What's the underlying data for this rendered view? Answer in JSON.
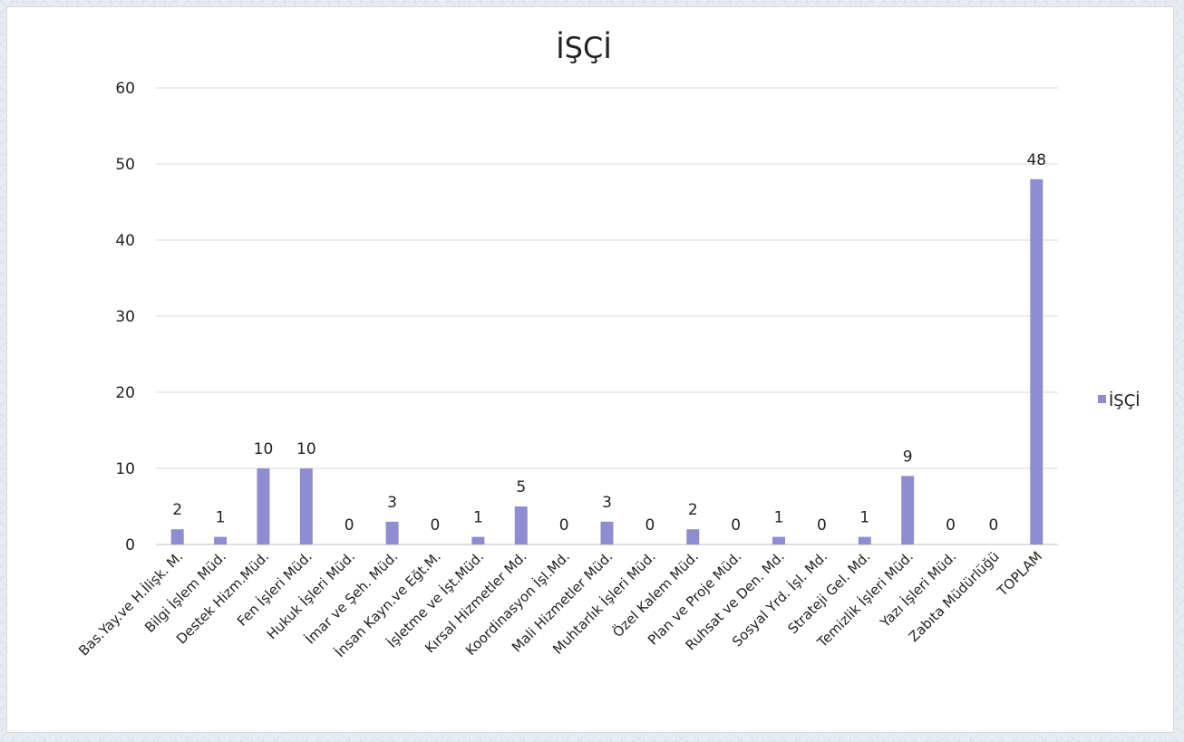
{
  "chart_data": {
    "type": "bar",
    "title": "İŞÇİ",
    "xlabel": "",
    "ylabel": "",
    "ylim": [
      0,
      60
    ],
    "yticks": [
      0,
      10,
      20,
      30,
      40,
      50,
      60
    ],
    "grid": true,
    "legend_position": "right",
    "bar_color": "#8f8dd1",
    "categories": [
      "Bas.Yay.ve H.İlişk. M.",
      "Bilgi İşlem Müd.",
      "Destek Hizm.Müd.",
      "Fen İşleri Müd.",
      "Hukuk İşleri Müd.",
      "İmar ve Şeh. Müd.",
      "İnsan Kayn.ve Eğt.M.",
      "İşletme ve İşt.Müd.",
      "Kırsal Hizmetler Md.",
      "Koordinasyon İşl.Md.",
      "Mali Hizmetler Müd.",
      "Muhtarlık İşleri Müd.",
      "Özel Kalem Müd.",
      "Plan ve Proje Müd.",
      "Ruhsat ve Den. Md.",
      "Sosyal Yrd. İşl. Md.",
      "Strateji Gel. Md.",
      "Temizlik İşleri Müd.",
      "Yazı İşleri Müd.",
      "Zabıta Müdürlüğü",
      "TOPLAM"
    ],
    "series": [
      {
        "name": "İŞÇİ",
        "values": [
          2,
          1,
          10,
          10,
          0,
          3,
          0,
          1,
          5,
          0,
          3,
          0,
          2,
          0,
          1,
          0,
          1,
          9,
          0,
          0,
          48
        ]
      }
    ]
  }
}
